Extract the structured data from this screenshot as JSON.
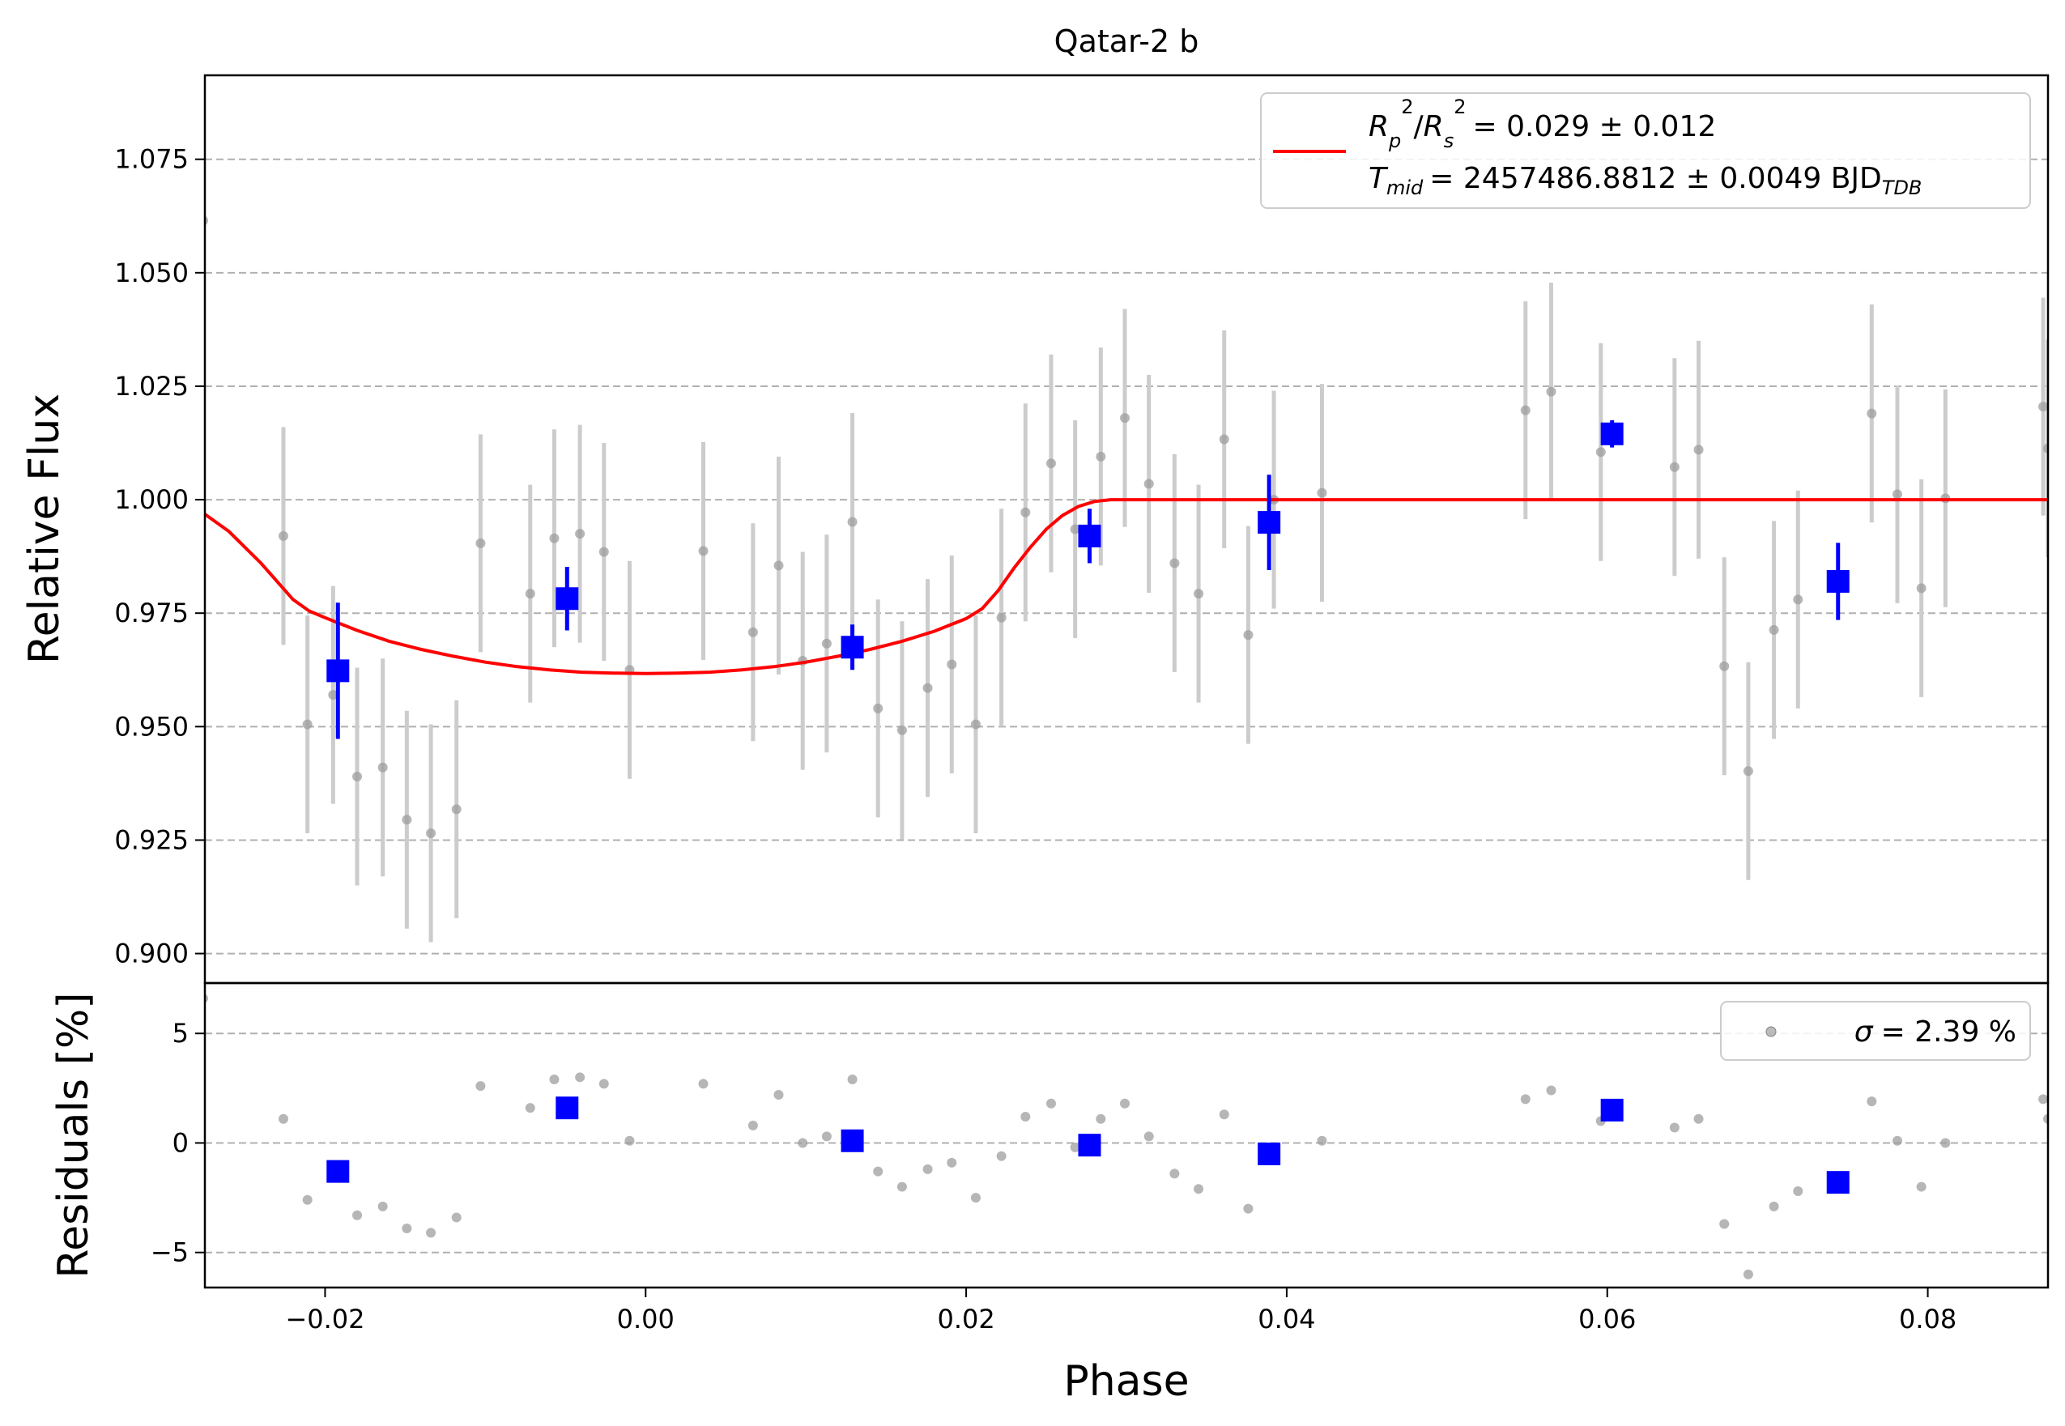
{
  "chart_data": {
    "type": "scatter",
    "title": "Qatar-2 b",
    "xlabel": "Phase",
    "xlim": [
      -0.0275,
      0.0875
    ],
    "x_ticks": [
      "−0.02",
      "0.00",
      "0.02",
      "0.04",
      "0.06",
      "0.08"
    ],
    "x_tick_values": [
      -0.02,
      0.0,
      0.02,
      0.04,
      0.06,
      0.08
    ],
    "panels": [
      {
        "name": "flux",
        "ylabel": "Relative Flux",
        "ylim": [
          0.8935,
          1.0935
        ],
        "y_ticks": [
          "0.900",
          "0.925",
          "0.950",
          "0.975",
          "1.000",
          "1.025",
          "1.050",
          "1.075"
        ],
        "y_tick_values": [
          0.9,
          0.925,
          0.95,
          0.975,
          1.0,
          1.025,
          1.05,
          1.075
        ],
        "grid": true
      },
      {
        "name": "residuals",
        "ylabel": "Residuals [%]",
        "ylim": [
          -6.6,
          7.3
        ],
        "y_ticks": [
          "−5",
          "0",
          "5"
        ],
        "y_tick_values": [
          -5,
          0,
          5
        ],
        "grid": true
      }
    ],
    "series": [
      {
        "role": "raw-data",
        "color": "#9e9e9e",
        "errorbar_color": "#cccccc",
        "x": [
          -0.0276,
          -0.0226,
          -0.0211,
          -0.0195,
          -0.018,
          -0.0164,
          -0.0149,
          -0.0134,
          -0.0118,
          -0.0103,
          -0.0072,
          -0.0057,
          -0.0041,
          -0.0026,
          -0.001,
          0.0036,
          0.0067,
          0.0083,
          0.0098,
          0.0113,
          0.0129,
          0.0145,
          0.016,
          0.0176,
          0.0191,
          0.0206,
          0.0222,
          0.0237,
          0.0253,
          0.0268,
          0.0284,
          0.0299,
          0.0314,
          0.033,
          0.0345,
          0.0361,
          0.0376,
          0.0392,
          0.0422,
          0.0549,
          0.0565,
          0.0596,
          0.0642,
          0.0657,
          0.0673,
          0.0688,
          0.0704,
          0.0719,
          0.0765,
          0.0781,
          0.0796,
          0.0811,
          0.0872,
          0.0875
        ],
        "y": [
          1.0615,
          0.992,
          0.9505,
          0.957,
          0.939,
          0.941,
          0.9295,
          0.9265,
          0.9318,
          0.9904,
          0.9793,
          0.9915,
          0.9925,
          0.9885,
          0.9625,
          0.9887,
          0.9708,
          0.9855,
          0.9645,
          0.9683,
          0.9951,
          0.954,
          0.9492,
          0.9585,
          0.9637,
          0.9505,
          0.974,
          0.9972,
          1.008,
          0.9935,
          1.0095,
          1.018,
          1.0035,
          0.986,
          0.9793,
          1.0133,
          0.9702,
          1.0,
          1.0015,
          1.0197,
          1.0238,
          1.0105,
          1.0072,
          1.011,
          0.9633,
          0.9402,
          0.9713,
          0.978,
          1.019,
          1.0012,
          0.9805,
          1.0003,
          1.0205,
          1.0113
        ],
        "yerr": 0.024
      },
      {
        "role": "binned-data",
        "color": "#0000ff",
        "x": [
          -0.0192,
          -0.0049,
          0.0129,
          0.0277,
          0.0389,
          0.0603,
          0.0744
        ],
        "y": [
          0.9623,
          0.9782,
          0.9675,
          0.992,
          0.995,
          1.0145,
          0.982
        ],
        "yerr": [
          0.015,
          0.007,
          0.005,
          0.006,
          0.0105,
          0.003,
          0.0085
        ]
      },
      {
        "role": "model",
        "color": "#ff0000",
        "x": [
          -0.0275,
          -0.026,
          -0.024,
          -0.022,
          -0.021,
          -0.02,
          -0.018,
          -0.016,
          -0.014,
          -0.012,
          -0.01,
          -0.008,
          -0.006,
          -0.004,
          -0.002,
          0.0,
          0.002,
          0.004,
          0.006,
          0.008,
          0.01,
          0.012,
          0.014,
          0.016,
          0.018,
          0.02,
          0.021,
          0.022,
          0.023,
          0.024,
          0.025,
          0.026,
          0.027,
          0.028,
          0.029,
          0.03,
          0.0875
        ],
        "y": [
          0.9968,
          0.993,
          0.986,
          0.978,
          0.9755,
          0.974,
          0.9712,
          0.9688,
          0.967,
          0.9655,
          0.9642,
          0.9632,
          0.9625,
          0.962,
          0.9618,
          0.9617,
          0.9618,
          0.962,
          0.9625,
          0.9632,
          0.9642,
          0.9655,
          0.967,
          0.9688,
          0.971,
          0.9738,
          0.976,
          0.98,
          0.985,
          0.9895,
          0.9935,
          0.9965,
          0.9985,
          0.9996,
          1.0,
          1.0,
          1.0
        ]
      },
      {
        "role": "residuals",
        "color": "#9e9e9e",
        "x": [
          -0.0276,
          -0.0226,
          -0.0211,
          -0.018,
          -0.0164,
          -0.0149,
          -0.0134,
          -0.0118,
          -0.0103,
          -0.0072,
          -0.0057,
          -0.0041,
          -0.0026,
          -0.001,
          0.0036,
          0.0067,
          0.0083,
          0.0098,
          0.0113,
          0.0129,
          0.0145,
          0.016,
          0.0176,
          0.0191,
          0.0206,
          0.0222,
          0.0237,
          0.0253,
          0.0268,
          0.0284,
          0.0299,
          0.0314,
          0.033,
          0.0345,
          0.0361,
          0.0376,
          0.0422,
          0.0549,
          0.0565,
          0.0596,
          0.0642,
          0.0657,
          0.0673,
          0.0688,
          0.0704,
          0.0719,
          0.0765,
          0.0781,
          0.0796,
          0.0811,
          0.0872,
          0.0875
        ],
        "y": [
          6.6,
          1.1,
          -2.6,
          -3.3,
          -2.9,
          -3.9,
          -4.1,
          -3.4,
          2.6,
          1.6,
          2.9,
          3.0,
          2.7,
          0.1,
          2.7,
          0.8,
          2.2,
          0.0,
          0.3,
          2.9,
          -1.3,
          -2.0,
          -1.2,
          -0.9,
          -2.5,
          -0.6,
          1.2,
          1.8,
          -0.2,
          1.1,
          1.8,
          0.3,
          -1.4,
          -2.1,
          1.3,
          -3.0,
          0.1,
          2.0,
          2.4,
          1.0,
          0.7,
          1.1,
          -3.7,
          -6.0,
          -2.9,
          -2.2,
          1.9,
          0.1,
          -2.0,
          0.0,
          2.0,
          1.1
        ]
      },
      {
        "role": "binned-residuals",
        "color": "#0000ff",
        "x": [
          -0.0192,
          -0.0049,
          0.0129,
          0.0277,
          0.0389,
          0.0603,
          0.0744
        ],
        "y": [
          -1.3,
          1.6,
          0.1,
          -0.1,
          -0.5,
          1.5,
          -1.8
        ]
      }
    ],
    "legend_flux": {
      "position": "upper right",
      "line1_main": "R",
      "line1_text": "= 0.029 ± 0.012",
      "line2_main": "T",
      "line2_sub": "mid",
      "line2_text": "= 2457486.8812 ± 0.0049 BJD",
      "line2_unit_sub": "TDB"
    },
    "legend_residuals": {
      "position": "upper right",
      "symbol": "σ",
      "text": "= 2.39 %"
    }
  }
}
